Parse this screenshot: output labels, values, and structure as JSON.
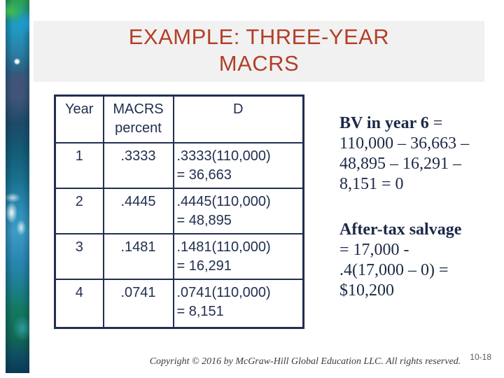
{
  "title": {
    "line1": "EXAMPLE: THREE-YEAR",
    "line2": "MACRS"
  },
  "colors": {
    "title_red": "#b23f28",
    "table_navy": "#212f4f",
    "band_gray": "#f1f1f1"
  },
  "table": {
    "headers": [
      "Year",
      "MACRS percent",
      "D"
    ],
    "rows": [
      {
        "year": "1",
        "percent": ".3333",
        "d1": ".3333(110,000)",
        "d2": "= 36,663"
      },
      {
        "year": "2",
        "percent": ".4445",
        "d1": ".4445(110,000)",
        "d2": "= 48,895"
      },
      {
        "year": "3",
        "percent": ".1481",
        "d1": ".1481(110,000)",
        "d2": "= 16,291"
      },
      {
        "year": "4",
        "percent": ".0741",
        "d1": ".0741(110,000)",
        "d2": "= 8,151"
      }
    ]
  },
  "notes": {
    "bv": {
      "heading": "BV in year 6",
      "suffix": " =",
      "lines": [
        "110,000 – 36,663 –",
        "48,895 – 16,291 –",
        "8,151 = 0"
      ]
    },
    "salvage": {
      "heading": "After-tax salvage",
      "lines": [
        "= 17,000 -",
        ".4(17,000 – 0) =",
        "$10,200"
      ]
    }
  },
  "footer": {
    "copyright": "Copyright © 2016 by McGraw-Hill Global Education LLC. All rights reserved.",
    "page_number": "10-18"
  }
}
